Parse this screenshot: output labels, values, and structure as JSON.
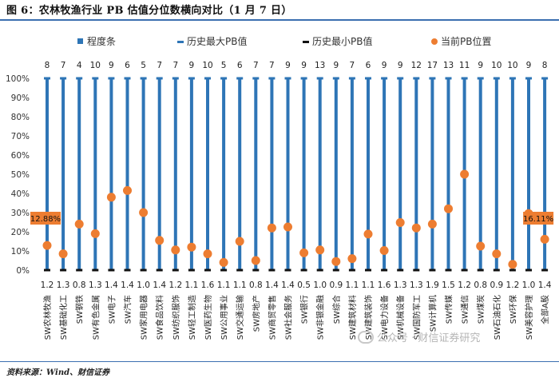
{
  "header": {
    "title": "图 6：农林牧渔行业 PB 估值分位数横向对比（1 月 7 日）"
  },
  "footer": {
    "source": "资料来源：Wind、财信证券",
    "watermark": "公众号 · 财信证券研究"
  },
  "chart_data": {
    "type": "bar",
    "title": "农林牧渔行业 PB 估值分位数横向对比（1 月 7 日）",
    "ylim": [
      0,
      100
    ],
    "yticks": [
      "0%",
      "10%",
      "20%",
      "30%",
      "40%",
      "50%",
      "60%",
      "70%",
      "80%",
      "90%",
      "100%"
    ],
    "legend": [
      {
        "label": "程度条",
        "color": "#2e75b6",
        "marker": "square"
      },
      {
        "label": "历史最大PB值",
        "color": "#2e75b6",
        "marker": "dash"
      },
      {
        "label": "历史最小PB值",
        "color": "#111111",
        "marker": "dash"
      },
      {
        "label": "当前PB位置",
        "color": "#ed7d31",
        "marker": "circle"
      }
    ],
    "categories": [
      "SW农林牧渔",
      "SW基础化工",
      "SW钢铁",
      "SW有色金属",
      "SW电子",
      "SW汽车",
      "SW家用电器",
      "SW食品饮料",
      "SW纺织服饰",
      "SW轻工制造",
      "SW医药生物",
      "SW公用事业",
      "SW交通运输",
      "SW房地产",
      "SW商贸零售",
      "SW社会服务",
      "SW银行",
      "SW非银金融",
      "SW综合",
      "SW建筑材料",
      "SW建筑装饰",
      "SW电力设备",
      "SW机械设备",
      "SW国防军工",
      "SW计算机",
      "SW传媒",
      "SW通信",
      "SW煤炭",
      "SW石油石化",
      "SW环保",
      "SW美容护理",
      "全部A股"
    ],
    "max_pb": [
      "8",
      "7",
      "4",
      "10",
      "9",
      "6",
      "5",
      "7",
      "7",
      "9",
      "10",
      "5",
      "6",
      "7",
      "7",
      "9",
      "9",
      "13",
      "9",
      "7",
      "6",
      "9",
      "9",
      "12",
      "17",
      "13",
      "11",
      "9",
      "10",
      "10",
      "9",
      "8"
    ],
    "min_pb": [
      "1.2",
      "1.3",
      "0.8",
      "1.3",
      "1.4",
      "1.4",
      "1.0",
      "1.4",
      "1.2",
      "1.1",
      "1.6",
      "1.1",
      "1.1",
      "0.8",
      "1.4",
      "1.4",
      "0.5",
      "1.0",
      "0.9",
      "1.1",
      "1.1",
      "1.6",
      "1.3",
      "1.3",
      "1.9",
      "1.5",
      "1.2",
      "0.8",
      "0.9",
      "1.2",
      "1.0",
      "1.4"
    ],
    "series": [
      {
        "name": "当前PB位置",
        "values": [
          12.88,
          8.5,
          24,
          19,
          38,
          41.5,
          30,
          15.5,
          10.5,
          12,
          8.5,
          4,
          15,
          5,
          22,
          22.5,
          9,
          10.5,
          4.5,
          6,
          18.8,
          10.2,
          24.8,
          22,
          24,
          32,
          50,
          12.5,
          8.5,
          3,
          29.5,
          16.11
        ]
      }
    ],
    "callouts": [
      {
        "category": "SW农林牧渔",
        "text": "12.88%"
      },
      {
        "category": "全部A股",
        "text": "16.11%"
      }
    ],
    "colors": {
      "bar": "#2e75b6",
      "min_line": "#111111",
      "marker": "#ed7d31",
      "callout_bg": "#ed7d31"
    }
  }
}
